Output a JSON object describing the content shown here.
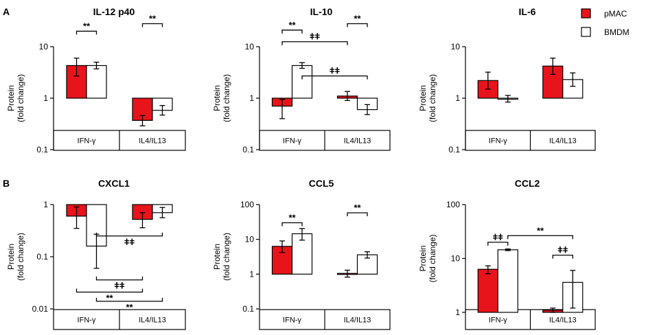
{
  "panel_labels": [
    "A",
    "B"
  ],
  "legend": {
    "items": [
      "pMAC",
      "BMDM"
    ]
  },
  "colors": {
    "pmac": "#e8141b",
    "bmdm": "#ffffff",
    "stroke": "#000000"
  },
  "chart_data": [
    {
      "type": "bar",
      "title": "IL-12 p40",
      "ylabel": "Protein (fold change)",
      "scale": "log",
      "ylabel_lines": [
        "Protein",
        "(fold change)"
      ],
      "ylim": [
        0.1,
        10
      ],
      "yticks": [
        10,
        1,
        0.1
      ],
      "ytick_labels": [
        "10",
        "1",
        "0.1"
      ],
      "categories": [
        "IFN-γ",
        "IL4/IL13"
      ],
      "series": [
        {
          "name": "pMAC",
          "values": [
            4.3,
            0.37
          ],
          "err_lo": [
            2.7,
            0.29
          ],
          "err_hi": [
            6.0,
            0.46
          ]
        },
        {
          "name": "BMDM",
          "values": [
            4.3,
            0.58
          ],
          "err_lo": [
            3.7,
            0.47
          ],
          "err_hi": [
            5.0,
            0.72
          ]
        }
      ],
      "annotations": [
        {
          "label": "**",
          "from": [
            1,
            0
          ],
          "to": [
            1,
            1
          ],
          "level": 28,
          "dir": "down"
        },
        {
          "label": "**",
          "from": [
            0,
            0
          ],
          "to": [
            0,
            1
          ],
          "level": 20,
          "dir": "down"
        }
      ]
    },
    {
      "type": "bar",
      "title": "IL-10",
      "ylabel": "Protein (fold change)",
      "scale": "log",
      "ylabel_lines": [
        "Protein",
        "(fold change)"
      ],
      "ylim": [
        0.1,
        10
      ],
      "yticks": [
        10,
        1,
        0.1
      ],
      "ytick_labels": [
        "10",
        "1",
        "0.1"
      ],
      "categories": [
        "IFN-γ",
        "IL4/IL13"
      ],
      "series": [
        {
          "name": "pMAC",
          "values": [
            0.7,
            1.1
          ],
          "err_lo": [
            0.4,
            0.9
          ],
          "err_hi": [
            0.95,
            1.35
          ]
        },
        {
          "name": "BMDM",
          "values": [
            4.3,
            0.6
          ],
          "err_lo": [
            3.8,
            0.48
          ],
          "err_hi": [
            4.9,
            0.75
          ]
        }
      ],
      "annotations": [
        {
          "label": "**",
          "from": [
            1,
            0
          ],
          "to": [
            1,
            1
          ],
          "level": 28,
          "dir": "down"
        },
        {
          "label": "**",
          "from": [
            0,
            0
          ],
          "to": [
            0,
            1
          ],
          "level": 21,
          "dir": "down"
        },
        {
          "label": "ǂǂ",
          "from": [
            0,
            0
          ],
          "to": [
            1,
            0
          ],
          "level": 12.5,
          "dir": "down"
        },
        {
          "label": "ǂǂ",
          "from": [
            0,
            1
          ],
          "to": [
            1,
            1
          ],
          "level": 2.7,
          "dir": "down"
        }
      ]
    },
    {
      "type": "bar",
      "title": "IL-6",
      "ylabel": "Protein (fold change)",
      "scale": "log",
      "ylabel_lines": [
        "Protein",
        "(fold change)"
      ],
      "ylim": [
        0.1,
        10
      ],
      "yticks": [
        10,
        1,
        0.1
      ],
      "ytick_labels": [
        "10",
        "1",
        "0.1"
      ],
      "categories": [
        "IFN-γ",
        "IL4/IL13"
      ],
      "series": [
        {
          "name": "pMAC",
          "values": [
            2.2,
            4.2
          ],
          "err_lo": [
            1.5,
            2.9
          ],
          "err_hi": [
            3.2,
            6.0
          ]
        },
        {
          "name": "BMDM",
          "values": [
            0.97,
            2.3
          ],
          "err_lo": [
            0.84,
            1.7
          ],
          "err_hi": [
            1.13,
            3.1
          ]
        }
      ],
      "annotations": []
    },
    {
      "type": "bar",
      "title": "CXCL1",
      "ylabel": "Protein (fold change)",
      "scale": "log",
      "ylabel_lines": [
        "Protein",
        "(fold change)"
      ],
      "ylim": [
        0.01,
        1
      ],
      "yticks": [
        1,
        0.1,
        0.01
      ],
      "ytick_labels": [
        "1",
        "0.1",
        "0.01"
      ],
      "categories": [
        "IFN-γ",
        "IL4/IL13"
      ],
      "series": [
        {
          "name": "pMAC",
          "values": [
            0.6,
            0.52
          ],
          "err_lo": [
            0.35,
            0.36
          ],
          "err_hi": [
            0.9,
            0.7
          ]
        },
        {
          "name": "BMDM",
          "values": [
            0.16,
            0.7
          ],
          "err_lo": [
            0.06,
            0.56
          ],
          "err_hi": [
            0.27,
            0.88
          ]
        }
      ],
      "annotations": [
        {
          "label": "ǂǂ",
          "from": [
            1,
            1
          ],
          "to": [
            0,
            1
          ],
          "level": 0.25,
          "dir": "up"
        },
        {
          "label": "ǂǂ",
          "from": [
            0,
            1
          ],
          "to": [
            1,
            0
          ],
          "level": 0.036,
          "dir": "up"
        },
        {
          "label": "**",
          "from": [
            0,
            0
          ],
          "to": [
            1,
            0
          ],
          "level": 0.021,
          "dir": "up"
        },
        {
          "label": "**",
          "from": [
            0,
            1
          ],
          "to": [
            1,
            1
          ],
          "level": 0.014,
          "dir": "up"
        }
      ]
    },
    {
      "type": "bar",
      "title": "CCL5",
      "ylabel": "Protein (fold change)",
      "scale": "log",
      "ylabel_lines": [
        "Protein",
        "(fold change)"
      ],
      "ylim": [
        0.1,
        100
      ],
      "yticks": [
        100,
        10,
        1,
        0.1
      ],
      "ytick_labels": [
        "100",
        "10",
        "1",
        "0.1"
      ],
      "categories": [
        "IFN-γ",
        "IL4/IL13"
      ],
      "series": [
        {
          "name": "pMAC",
          "values": [
            6.3,
            1.05
          ],
          "err_lo": [
            4.2,
            0.82
          ],
          "err_hi": [
            9.0,
            1.3
          ]
        },
        {
          "name": "BMDM",
          "values": [
            14.5,
            3.6
          ],
          "err_lo": [
            9.5,
            2.9
          ],
          "err_hi": [
            20.5,
            4.4
          ]
        }
      ],
      "annotations": [
        {
          "label": "**",
          "from": [
            1,
            0
          ],
          "to": [
            1,
            1
          ],
          "level": 58,
          "dir": "down"
        },
        {
          "label": "**",
          "from": [
            0,
            0
          ],
          "to": [
            0,
            1
          ],
          "level": 30,
          "dir": "down"
        }
      ]
    },
    {
      "type": "bar",
      "title": "CCL2",
      "ylabel": "Protein (fold change)",
      "scale": "log",
      "ylabel_lines": [
        "Protein",
        "(fold change)"
      ],
      "ylim": [
        1,
        100
      ],
      "yticks": [
        100,
        10,
        1
      ],
      "ytick_labels": [
        "100",
        "10",
        "1"
      ],
      "categories": [
        "IFN-γ",
        "IL4/IL13"
      ],
      "series": [
        {
          "name": "pMAC",
          "values": [
            6.3,
            1.1
          ],
          "err_lo": [
            5.2,
            1.0
          ],
          "err_hi": [
            7.3,
            1.2
          ]
        },
        {
          "name": "BMDM",
          "values": [
            14.5,
            3.6
          ],
          "err_lo": [
            14.0,
            1.2
          ],
          "err_hi": [
            15.0,
            6.0
          ]
        }
      ],
      "annotations": [
        {
          "label": "ǂǂ",
          "from": [
            0,
            0
          ],
          "to": [
            0,
            1
          ],
          "level": 20,
          "dir": "down"
        },
        {
          "label": "**",
          "from": [
            0,
            1
          ],
          "to": [
            1,
            1
          ],
          "level": 26.5,
          "dir": "down"
        },
        {
          "label": "ǂǂ",
          "from": [
            1,
            0
          ],
          "to": [
            1,
            1
          ],
          "level": 11.5,
          "dir": "down"
        }
      ]
    }
  ]
}
